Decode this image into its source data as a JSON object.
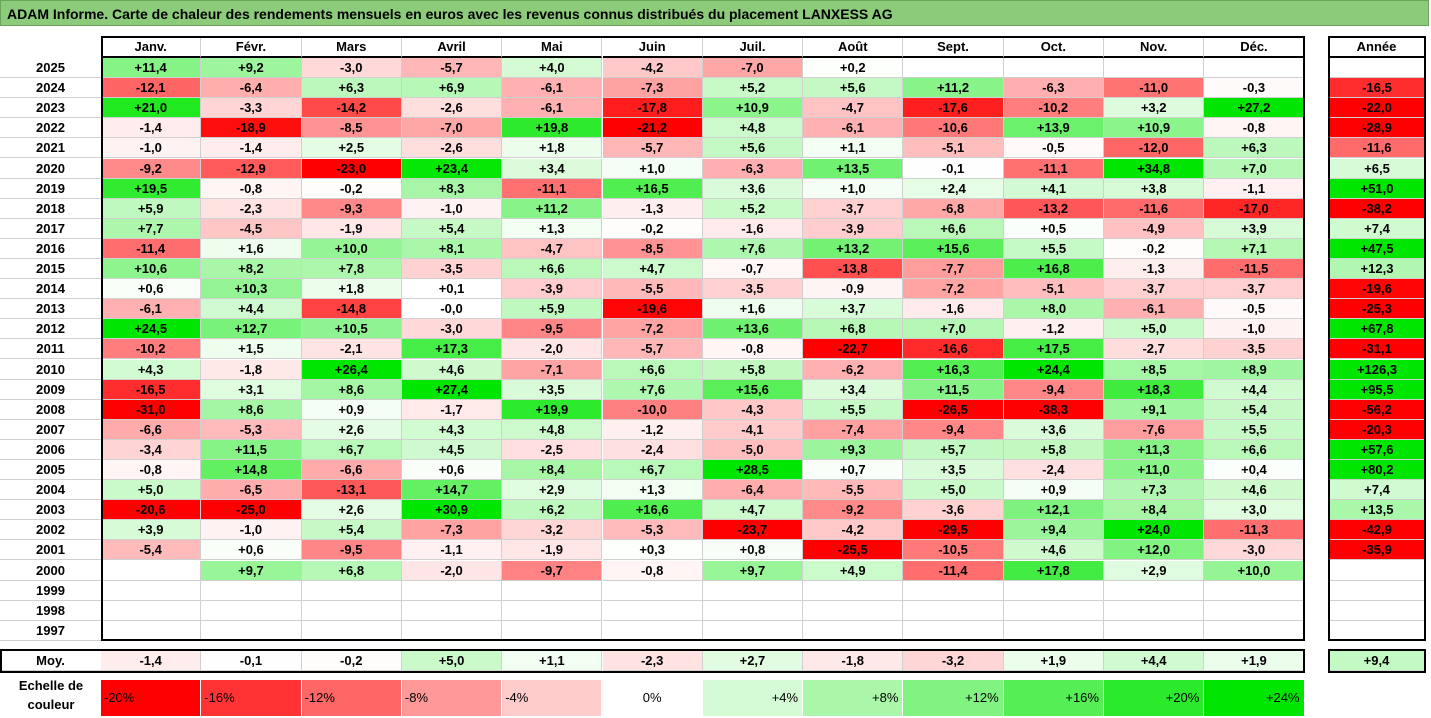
{
  "title": "ADAM Informe. Carte de chaleur des rendements mensuels en euros avec les revenus connus distribués du placement LANXESS AG",
  "months": [
    "Janv.",
    "Févr.",
    "Mars",
    "Avril",
    "Mai",
    "Juin",
    "Juil.",
    "Août",
    "Sept.",
    "Oct.",
    "Nov.",
    "Déc."
  ],
  "year_header": "Année",
  "avg_label": "Moy.",
  "scale_label_line1": "Echelle de",
  "scale_label_line2": "couleur",
  "colors": {
    "negative_max": "#ff0000",
    "neutral": "#ffffff",
    "positive_max": "#00e000",
    "title_bg": "#8bcb7a"
  },
  "chart_data": {
    "type": "heatmap",
    "title": "ADAM Informe. Carte de chaleur des rendements mensuels en euros avec les revenus connus distribués du placement LANXESS AG",
    "columns": [
      "Janv.",
      "Févr.",
      "Mars",
      "Avril",
      "Mai",
      "Juin",
      "Juil.",
      "Août",
      "Sept.",
      "Oct.",
      "Nov.",
      "Déc."
    ],
    "rows": [
      {
        "year": "2025",
        "values": [
          "+11,4",
          "+9,2",
          "-3,0",
          "-5,7",
          "+4,0",
          "-4,2",
          "-7,0",
          "+0,2",
          "",
          "",
          "",
          ""
        ],
        "annual": ""
      },
      {
        "year": "2024",
        "values": [
          "-12,1",
          "-6,4",
          "+6,3",
          "+6,9",
          "-6,1",
          "-7,3",
          "+5,2",
          "+5,6",
          "+11,2",
          "-6,3",
          "-11,0",
          "-0,3"
        ],
        "annual": "-16,5"
      },
      {
        "year": "2023",
        "values": [
          "+21,0",
          "-3,3",
          "-14,2",
          "-2,6",
          "-6,1",
          "-17,8",
          "+10,9",
          "-4,7",
          "-17,6",
          "-10,2",
          "+3,2",
          "+27,2"
        ],
        "annual": "-22,0"
      },
      {
        "year": "2022",
        "values": [
          "-1,4",
          "-18,9",
          "-8,5",
          "-7,0",
          "+19,8",
          "-21,2",
          "+4,8",
          "-6,1",
          "-10,6",
          "+13,9",
          "+10,9",
          "-0,8"
        ],
        "annual": "-28,9"
      },
      {
        "year": "2021",
        "values": [
          "-1,0",
          "-1,4",
          "+2,5",
          "-2,6",
          "+1,8",
          "-5,7",
          "+5,6",
          "+1,1",
          "-5,1",
          "-0,5",
          "-12,0",
          "+6,3"
        ],
        "annual": "-11,6"
      },
      {
        "year": "2020",
        "values": [
          "-9,2",
          "-12,9",
          "-23,0",
          "+23,4",
          "+3,4",
          "+1,0",
          "-6,3",
          "+13,5",
          "-0,1",
          "-11,1",
          "+34,8",
          "+7,0"
        ],
        "annual": "+6,5"
      },
      {
        "year": "2019",
        "values": [
          "+19,5",
          "-0,8",
          "-0,2",
          "+8,3",
          "-11,1",
          "+16,5",
          "+3,6",
          "+1,0",
          "+2,4",
          "+4,1",
          "+3,8",
          "-1,1"
        ],
        "annual": "+51,0"
      },
      {
        "year": "2018",
        "values": [
          "+5,9",
          "-2,3",
          "-9,3",
          "-1,0",
          "+11,2",
          "-1,3",
          "+5,2",
          "-3,7",
          "-6,8",
          "-13,2",
          "-11,6",
          "-17,0"
        ],
        "annual": "-38,2"
      },
      {
        "year": "2017",
        "values": [
          "+7,7",
          "-4,5",
          "-1,9",
          "+5,4",
          "+1,3",
          "-0,2",
          "-1,6",
          "-3,9",
          "+6,6",
          "+0,5",
          "-4,9",
          "+3,9"
        ],
        "annual": "+7,4"
      },
      {
        "year": "2016",
        "values": [
          "-11,4",
          "+1,6",
          "+10,0",
          "+8,1",
          "-4,7",
          "-8,5",
          "+7,6",
          "+13,2",
          "+15,6",
          "+5,5",
          "-0,2",
          "+7,1"
        ],
        "annual": "+47,5"
      },
      {
        "year": "2015",
        "values": [
          "+10,6",
          "+8,2",
          "+7,8",
          "-3,5",
          "+6,6",
          "+4,7",
          "-0,7",
          "-13,8",
          "-7,7",
          "+16,8",
          "-1,3",
          "-11,5"
        ],
        "annual": "+12,3"
      },
      {
        "year": "2014",
        "values": [
          "+0,6",
          "+10,3",
          "+1,8",
          "+0,1",
          "-3,9",
          "-5,5",
          "-3,5",
          "-0,9",
          "-7,2",
          "-5,1",
          "-3,7",
          "-3,7"
        ],
        "annual": "-19,6"
      },
      {
        "year": "2013",
        "values": [
          "-6,1",
          "+4,4",
          "-14,8",
          "-0,0",
          "+5,9",
          "-19,6",
          "+1,6",
          "+3,7",
          "-1,6",
          "+8,0",
          "-6,1",
          "-0,5"
        ],
        "annual": "-25,3"
      },
      {
        "year": "2012",
        "values": [
          "+24,5",
          "+12,7",
          "+10,5",
          "-3,0",
          "-9,5",
          "-7,2",
          "+13,6",
          "+6,8",
          "+7,0",
          "-1,2",
          "+5,0",
          "-1,0"
        ],
        "annual": "+67,8"
      },
      {
        "year": "2011",
        "values": [
          "-10,2",
          "+1,5",
          "-2,1",
          "+17,3",
          "-2,0",
          "-5,7",
          "-0,8",
          "-22,7",
          "-16,6",
          "+17,5",
          "-2,7",
          "-3,5"
        ],
        "annual": "-31,1"
      },
      {
        "year": "2010",
        "values": [
          "+4,3",
          "-1,8",
          "+26,4",
          "+4,6",
          "-7,1",
          "+6,6",
          "+5,8",
          "-6,2",
          "+16,3",
          "+24,4",
          "+8,5",
          "+8,9"
        ],
        "annual": "+126,3"
      },
      {
        "year": "2009",
        "values": [
          "-16,5",
          "+3,1",
          "+8,6",
          "+27,4",
          "+3,5",
          "+7,6",
          "+15,6",
          "+3,4",
          "+11,5",
          "-9,4",
          "+18,3",
          "+4,4"
        ],
        "annual": "+95,5"
      },
      {
        "year": "2008",
        "values": [
          "-31,0",
          "+8,6",
          "+0,9",
          "-1,7",
          "+19,9",
          "-10,0",
          "-4,3",
          "+5,5",
          "-26,5",
          "-38,3",
          "+9,1",
          "+5,4"
        ],
        "annual": "-56,2"
      },
      {
        "year": "2007",
        "values": [
          "-6,6",
          "-5,3",
          "+2,6",
          "+4,3",
          "+4,8",
          "-1,2",
          "-4,1",
          "-7,4",
          "-9,4",
          "+3,6",
          "-7,6",
          "+5,5"
        ],
        "annual": "-20,3"
      },
      {
        "year": "2006",
        "values": [
          "-3,4",
          "+11,5",
          "+6,7",
          "+4,5",
          "-2,5",
          "-2,4",
          "-5,0",
          "+9,3",
          "+5,7",
          "+5,8",
          "+11,3",
          "+6,6"
        ],
        "annual": "+57,6"
      },
      {
        "year": "2005",
        "values": [
          "-0,8",
          "+14,8",
          "-6,6",
          "+0,6",
          "+8,4",
          "+6,7",
          "+28,5",
          "+0,7",
          "+3,5",
          "-2,4",
          "+11,0",
          "+0,4"
        ],
        "annual": "+80,2"
      },
      {
        "year": "2004",
        "values": [
          "+5,0",
          "-6,5",
          "-13,1",
          "+14,7",
          "+2,9",
          "+1,3",
          "-6,4",
          "-5,5",
          "+5,0",
          "+0,9",
          "+7,3",
          "+4,6"
        ],
        "annual": "+7,4"
      },
      {
        "year": "2003",
        "values": [
          "-20,6",
          "-25,0",
          "+2,6",
          "+30,9",
          "+6,2",
          "+16,6",
          "+4,7",
          "-9,2",
          "-3,6",
          "+12,1",
          "+8,4",
          "+3,0"
        ],
        "annual": "+13,5"
      },
      {
        "year": "2002",
        "values": [
          "+3,9",
          "-1,0",
          "+5,4",
          "-7,3",
          "-3,2",
          "-5,3",
          "-23,7",
          "-4,2",
          "-29,5",
          "+9,4",
          "+24,0",
          "-11,3"
        ],
        "annual": "-42,9"
      },
      {
        "year": "2001",
        "values": [
          "-5,4",
          "+0,6",
          "-9,5",
          "-1,1",
          "-1,9",
          "+0,3",
          "+0,8",
          "-25,5",
          "-10,5",
          "+4,6",
          "+12,0",
          "-3,0"
        ],
        "annual": "-35,9"
      },
      {
        "year": "2000",
        "values": [
          "",
          "+9,7",
          "+6,8",
          "-2,0",
          "-9,7",
          "-0,8",
          "+9,7",
          "+4,9",
          "-11,4",
          "+17,8",
          "+2,9",
          "+10,0"
        ],
        "annual": ""
      },
      {
        "year": "1999",
        "values": [
          "",
          "",
          "",
          "",
          "",
          "",
          "",
          "",
          "",
          "",
          "",
          ""
        ],
        "annual": ""
      },
      {
        "year": "1998",
        "values": [
          "",
          "",
          "",
          "",
          "",
          "",
          "",
          "",
          "",
          "",
          "",
          ""
        ],
        "annual": ""
      },
      {
        "year": "1997",
        "values": [
          "",
          "",
          "",
          "",
          "",
          "",
          "",
          "",
          "",
          "",
          "",
          ""
        ],
        "annual": ""
      }
    ],
    "average": {
      "values": [
        "-1,4",
        "-0,1",
        "-0,2",
        "+5,0",
        "+1,1",
        "-2,3",
        "+2,7",
        "-1,8",
        "-3,2",
        "+1,9",
        "+4,4",
        "+1,9"
      ],
      "annual": "+9,4"
    },
    "color_scale": [
      "-20%",
      "-16%",
      "-12%",
      "-8%",
      "-4%",
      "0%",
      "+4%",
      "+8%",
      "+12%",
      "+16%",
      "+20%",
      "+24%"
    ]
  }
}
